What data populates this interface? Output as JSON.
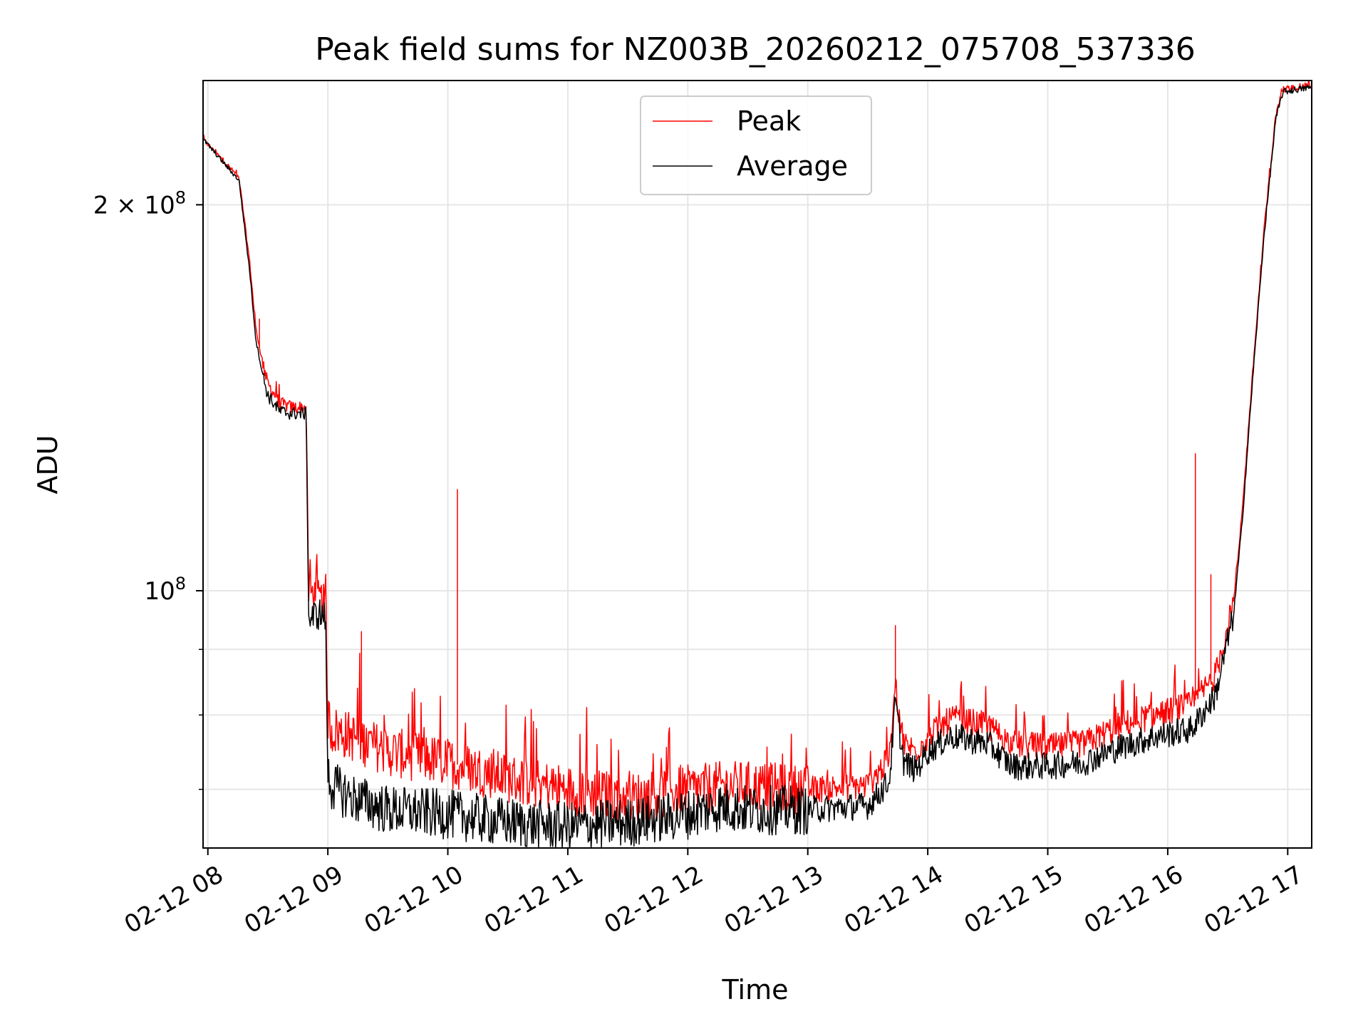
{
  "chart_data": {
    "type": "line",
    "title": "Peak field sums for NZ003B_20260212_075708_537336",
    "xlabel": "Time",
    "ylabel": "ADU",
    "yscale": "log",
    "grid": true,
    "legend_position": "upper center",
    "xlim": [
      7.96,
      17.2
    ],
    "ylim": [
      63000000,
      250000000
    ],
    "x_unit": "hour of 2026-02-12",
    "x_ticks": [
      8,
      9,
      10,
      11,
      12,
      13,
      14,
      15,
      16,
      17
    ],
    "x_tick_labels": [
      "02-12 08",
      "02-12 09",
      "02-12 10",
      "02-12 11",
      "02-12 12",
      "02-12 13",
      "02-12 14",
      "02-12 15",
      "02-12 16",
      "02-12 17"
    ],
    "y_major_ticks": [
      100000000,
      200000000
    ],
    "y_tick_labels": [
      {
        "base": "10",
        "exp": "8"
      },
      {
        "prefix": "2 × ",
        "base": "10",
        "exp": "8"
      }
    ],
    "y_minor_ticks": [
      70000000,
      80000000,
      90000000,
      300000000
    ],
    "series": [
      {
        "name": "Peak",
        "color": "#ff0000",
        "x": [
          7.96,
          8.2,
          8.26,
          8.35,
          8.4,
          8.46,
          8.5,
          8.6,
          8.7,
          8.82,
          8.84,
          8.92,
          8.98,
          9.0,
          9.03,
          9.2,
          9.5,
          10.0,
          10.5,
          11.0,
          11.5,
          12.0,
          12.3,
          12.5,
          13.0,
          13.5,
          13.68,
          13.73,
          13.8,
          13.9,
          14.0,
          14.2,
          14.5,
          14.7,
          15.0,
          15.3,
          15.6,
          15.9,
          16.2,
          16.4,
          16.55,
          16.62,
          16.7,
          16.8,
          16.9,
          16.96,
          17.2
        ],
        "y": [
          225000000,
          213000000,
          210000000,
          180000000,
          160000000,
          150000000,
          145000000,
          140000000,
          139000000,
          139000000,
          100000000,
          99000000,
          98000000,
          80000000,
          78000000,
          77000000,
          75000000,
          73500000,
          71500000,
          70000000,
          69000000,
          70000000,
          70500000,
          70500000,
          70000000,
          70500000,
          74000000,
          84000000,
          76000000,
          75000000,
          77000000,
          79500000,
          78500000,
          76000000,
          75500000,
          76000000,
          78500000,
          80000000,
          81500000,
          86000000,
          98000000,
          115000000,
          145000000,
          190000000,
          235000000,
          246000000,
          248000000
        ],
        "spikes": [
          {
            "x": 8.43,
            "y": 163000000
          },
          {
            "x": 9.28,
            "y": 93000000
          },
          {
            "x": 10.08,
            "y": 120000000
          },
          {
            "x": 13.73,
            "y": 94000000
          },
          {
            "x": 16.23,
            "y": 128000000
          },
          {
            "x": 16.36,
            "y": 103000000
          }
        ]
      },
      {
        "name": "Average",
        "color": "#000000",
        "x": [
          7.96,
          8.2,
          8.26,
          8.35,
          8.4,
          8.46,
          8.5,
          8.6,
          8.7,
          8.82,
          8.84,
          8.92,
          8.98,
          9.0,
          9.03,
          9.2,
          9.5,
          10.0,
          10.5,
          11.0,
          11.5,
          12.0,
          12.3,
          12.5,
          13.0,
          13.5,
          13.68,
          13.73,
          13.8,
          13.9,
          14.0,
          14.2,
          14.5,
          14.7,
          15.0,
          15.3,
          15.6,
          15.9,
          16.2,
          16.4,
          16.55,
          16.62,
          16.7,
          16.8,
          16.9,
          16.96,
          17.2
        ],
        "y": [
          225000000,
          212000000,
          209000000,
          177000000,
          157000000,
          147000000,
          142000000,
          138000000,
          137500000,
          137500000,
          95000000,
          96000000,
          95500000,
          72000000,
          70500000,
          69000000,
          67500000,
          67000000,
          66000000,
          65500000,
          66000000,
          67000000,
          68000000,
          67500000,
          67500000,
          68000000,
          71000000,
          82000000,
          73500000,
          72500000,
          75000000,
          77000000,
          76000000,
          73000000,
          73000000,
          73500000,
          75500000,
          77000000,
          78000000,
          83000000,
          96000000,
          113000000,
          143000000,
          188000000,
          233000000,
          245000000,
          247000000
        ]
      }
    ]
  }
}
